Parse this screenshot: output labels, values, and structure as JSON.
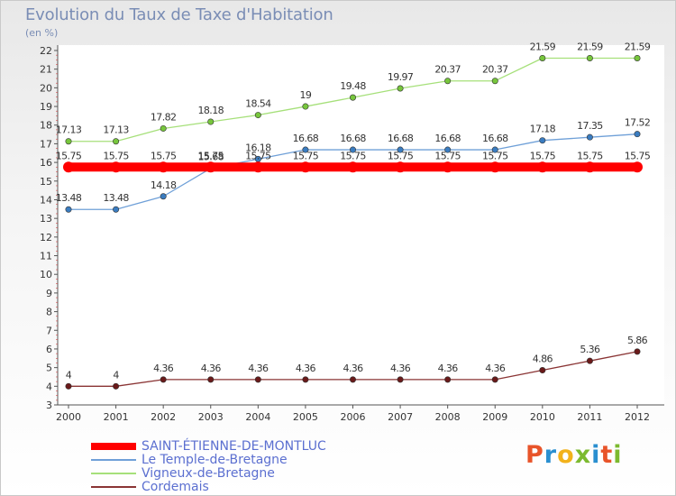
{
  "header": {
    "title": "Evolution du Taux de Taxe d'Habitation",
    "unit": "(en %)"
  },
  "logo": {
    "text": "Proxiti",
    "colors": [
      "#e8542a",
      "#2a8fd0",
      "#f2b21b",
      "#7cba2f",
      "#2a8fd0",
      "#e8542a",
      "#7cba2f"
    ]
  },
  "chart_data": {
    "type": "line",
    "x": [
      "2000",
      "2001",
      "2002",
      "2003",
      "2004",
      "2005",
      "2006",
      "2007",
      "2008",
      "2009",
      "2010",
      "2011",
      "2012"
    ],
    "ylim": [
      3,
      22
    ],
    "yticks": [
      3,
      4,
      5,
      6,
      7,
      8,
      9,
      10,
      11,
      12,
      13,
      14,
      15,
      16,
      17,
      18,
      19,
      20,
      21,
      22
    ],
    "grid": false,
    "legend": "bottom-left",
    "series": [
      {
        "name": "SAINT-ÉTIENNE-DE-MONTLUC",
        "color": "#ff0000",
        "width": 10,
        "values": [
          15.75,
          15.75,
          15.75,
          15.75,
          15.75,
          15.75,
          15.75,
          15.75,
          15.75,
          15.75,
          15.75,
          15.75,
          15.75
        ],
        "labels": [
          "15.75",
          "15.75",
          "15.75",
          "15.75",
          "15.75",
          "15.75",
          "15.75",
          "15.75",
          "15.75",
          "15.75",
          "15.75",
          "15.75",
          "15.75"
        ]
      },
      {
        "name": "Le Temple-de-Bretagne",
        "color": "#6fa0d8",
        "marker": "#3a7cc0",
        "width": 1.3,
        "values": [
          13.48,
          13.48,
          14.18,
          15.68,
          16.18,
          16.68,
          16.68,
          16.68,
          16.68,
          16.68,
          17.18,
          17.35,
          17.52
        ],
        "labels": [
          "13.48",
          "13.48",
          "14.18",
          "15.68",
          "16.18",
          "16.68",
          "16.68",
          "16.68",
          "16.68",
          "16.68",
          "17.18",
          "17.35",
          "17.52"
        ]
      },
      {
        "name": "Vigneux-de-Bretagne",
        "color": "#a6e07a",
        "marker": "#77c63c",
        "width": 1.3,
        "values": [
          17.13,
          17.13,
          17.82,
          18.18,
          18.54,
          19,
          19.48,
          19.97,
          20.37,
          20.37,
          21.59,
          21.59,
          21.59
        ],
        "labels": [
          "17.13",
          "17.13",
          "17.82",
          "18.18",
          "18.54",
          "19",
          "19.48",
          "19.97",
          "20.37",
          "20.37",
          "21.59",
          "21.59",
          "21.59"
        ]
      },
      {
        "name": "Cordemais",
        "color": "#8a3434",
        "marker": "#6a1a1a",
        "width": 1.3,
        "values": [
          4,
          4,
          4.36,
          4.36,
          4.36,
          4.36,
          4.36,
          4.36,
          4.36,
          4.36,
          4.86,
          5.36,
          5.86
        ],
        "labels": [
          "4",
          "4",
          "4.36",
          "4.36",
          "4.36",
          "4.36",
          "4.36",
          "4.36",
          "4.36",
          "4.36",
          "4.86",
          "5.36",
          "5.86"
        ]
      }
    ]
  },
  "legend": {
    "items": [
      {
        "label": "SAINT-ÉTIENNE-DE-MONTLUC",
        "color": "#ff0000"
      },
      {
        "label": "Le Temple-de-Bretagne",
        "color": "#6fa0d8"
      },
      {
        "label": "Vigneux-de-Bretagne",
        "color": "#a6e07a"
      },
      {
        "label": "Cordemais",
        "color": "#8a3434"
      }
    ]
  }
}
